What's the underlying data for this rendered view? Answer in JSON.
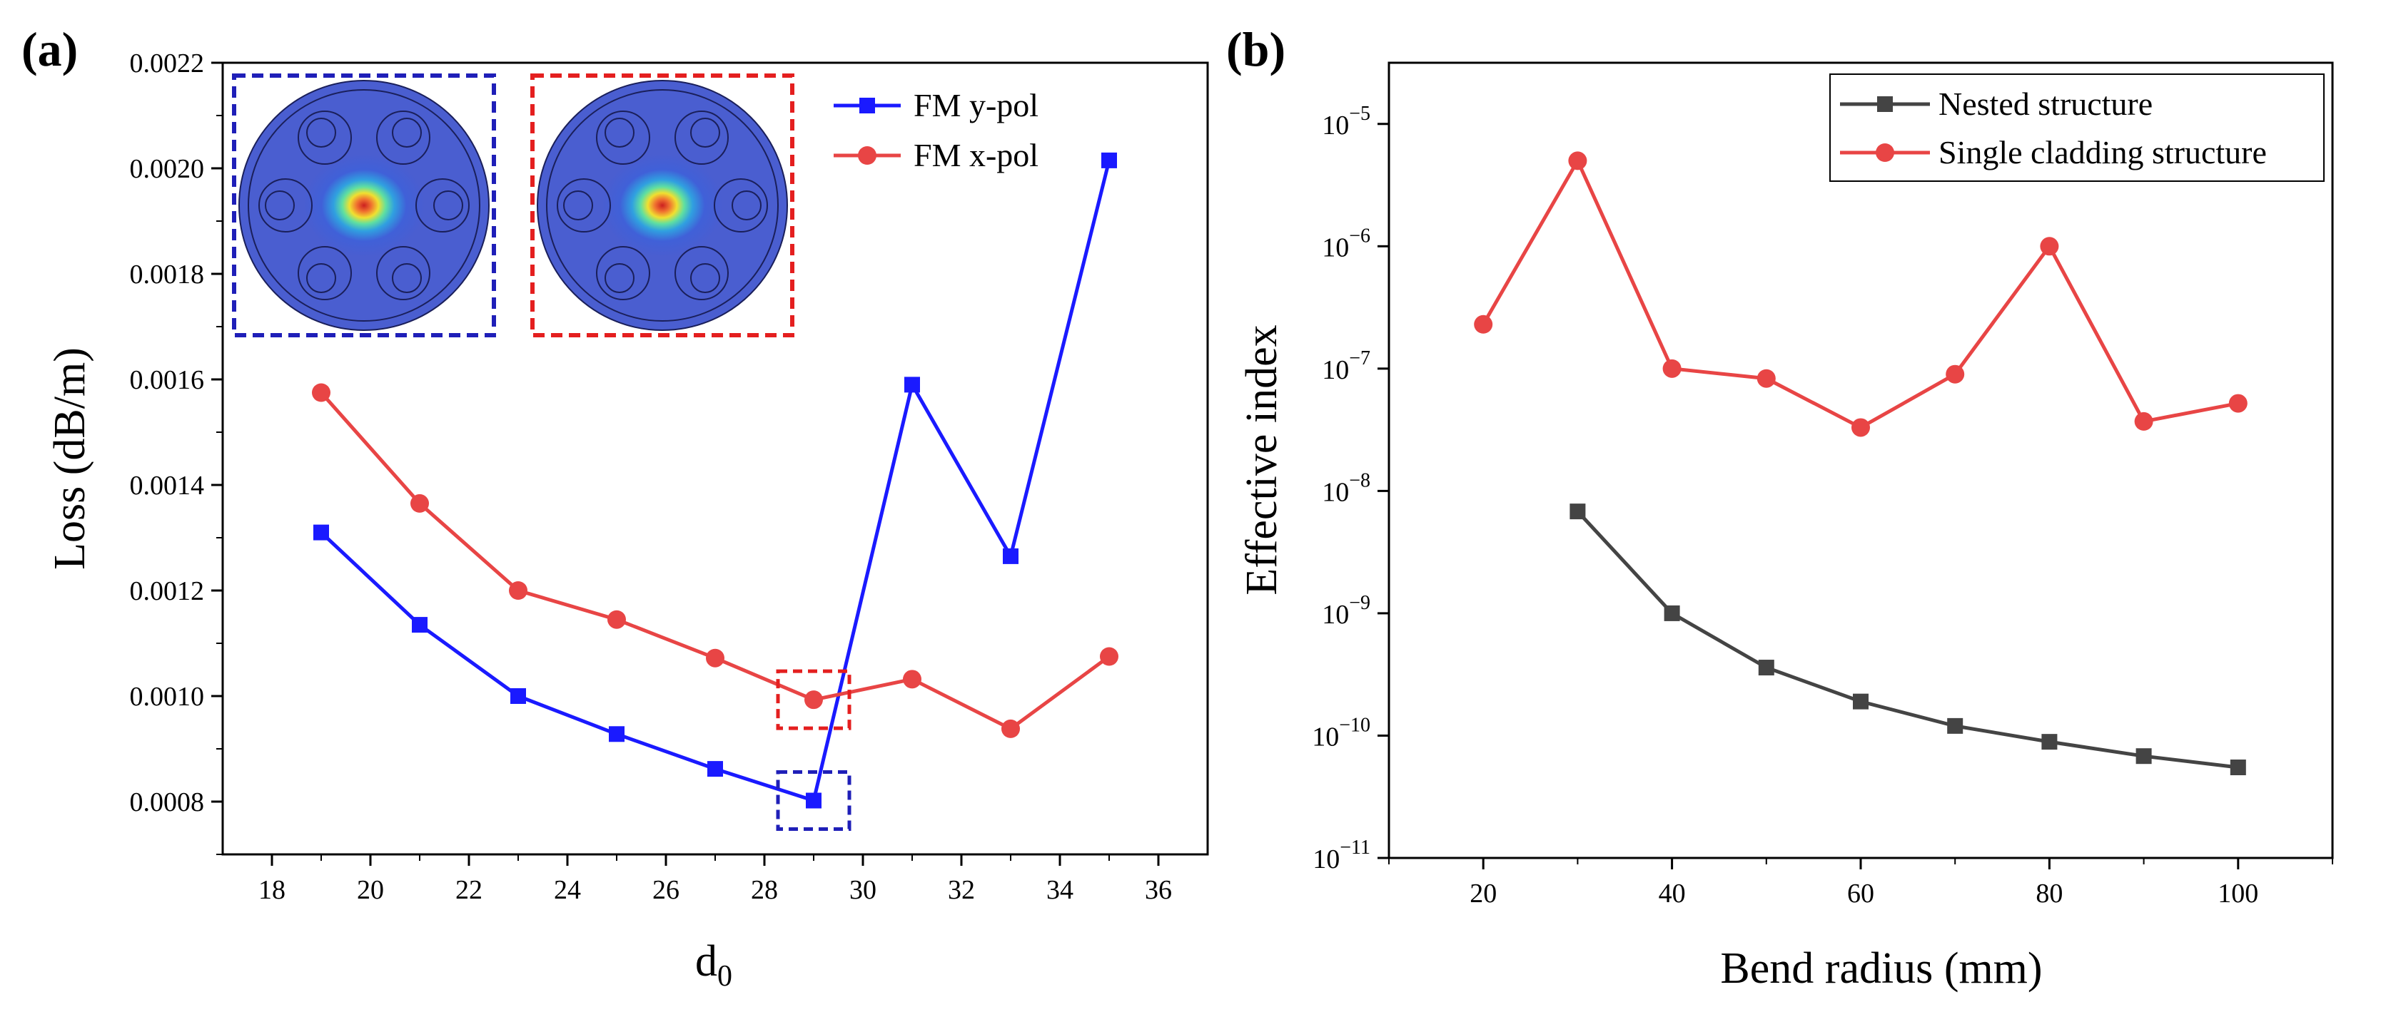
{
  "chart_data": [
    {
      "panel": "(a)",
      "type": "line",
      "xlabel": "d",
      "xlabel_sub": "0",
      "ylabel": "Loss (dB/m)",
      "xlim": [
        17,
        37
      ],
      "ylim": [
        0.0007,
        0.0022
      ],
      "x_ticks": [
        "18",
        "20",
        "22",
        "24",
        "26",
        "28",
        "30",
        "32",
        "34",
        "36"
      ],
      "y_ticks": [
        "0.0008",
        "0.0010",
        "0.0012",
        "0.0014",
        "0.0016",
        "0.0018",
        "0.0020",
        "0.0022"
      ],
      "legend_position": "top-right",
      "series": [
        {
          "name": "FM y-pol",
          "color": "#1a1aff",
          "marker": "square",
          "x": [
            19,
            21,
            23,
            25,
            27,
            29,
            31,
            33,
            35
          ],
          "y": [
            0.00131,
            0.001135,
            0.001,
            0.000928,
            0.000862,
            0.000802,
            0.00159,
            0.001265,
            0.002015
          ]
        },
        {
          "name": "FM x-pol",
          "color": "#e84545",
          "marker": "circle",
          "x": [
            19,
            21,
            23,
            25,
            27,
            29,
            31,
            33,
            35
          ],
          "y": [
            0.001575,
            0.001365,
            0.0012,
            0.001145,
            0.001072,
            0.000993,
            0.001032,
            0.000938,
            0.001075
          ]
        }
      ],
      "highlight_boxes": [
        {
          "x": 29,
          "y": 0.000802,
          "color": "#1f1fb8"
        },
        {
          "x": 29,
          "y": 0.000993,
          "color": "#e41f1f"
        }
      ],
      "insets": [
        {
          "frame_color": "#1f1fb8",
          "content": "mode-field-image"
        },
        {
          "frame_color": "#e41f1f",
          "content": "mode-field-image"
        }
      ]
    },
    {
      "panel": "(b)",
      "type": "line",
      "xlabel": "Bend radius (mm)",
      "ylabel": "Effective index",
      "y_scale": "log",
      "xlim": [
        10,
        110
      ],
      "ylim_exp": [
        -11,
        -4.5
      ],
      "x_ticks": [
        "20",
        "40",
        "60",
        "80",
        "100"
      ],
      "y_ticks": [
        {
          "base": "10",
          "exp": "−11"
        },
        {
          "base": "10",
          "exp": "−10"
        },
        {
          "base": "10",
          "exp": "−9"
        },
        {
          "base": "10",
          "exp": "−8"
        },
        {
          "base": "10",
          "exp": "−7"
        },
        {
          "base": "10",
          "exp": "−6"
        },
        {
          "base": "10",
          "exp": "−5"
        }
      ],
      "legend_position": "top-right",
      "series": [
        {
          "name": "Nested structure",
          "color": "#444444",
          "marker": "square",
          "x": [
            30,
            40,
            50,
            60,
            70,
            80,
            90,
            100
          ],
          "y": [
            6.8e-09,
            1e-09,
            3.6e-10,
            1.9e-10,
            1.2e-10,
            8.9e-11,
            6.8e-11,
            5.5e-11
          ]
        },
        {
          "name": "Single cladding structure",
          "color": "#e84545",
          "marker": "circle",
          "x": [
            20,
            30,
            40,
            50,
            60,
            70,
            80,
            90,
            100
          ],
          "y": [
            2.3e-07,
            5e-06,
            1e-07,
            8.3e-08,
            3.3e-08,
            9e-08,
            1e-06,
            3.7e-08,
            5.2e-08
          ]
        }
      ]
    }
  ]
}
